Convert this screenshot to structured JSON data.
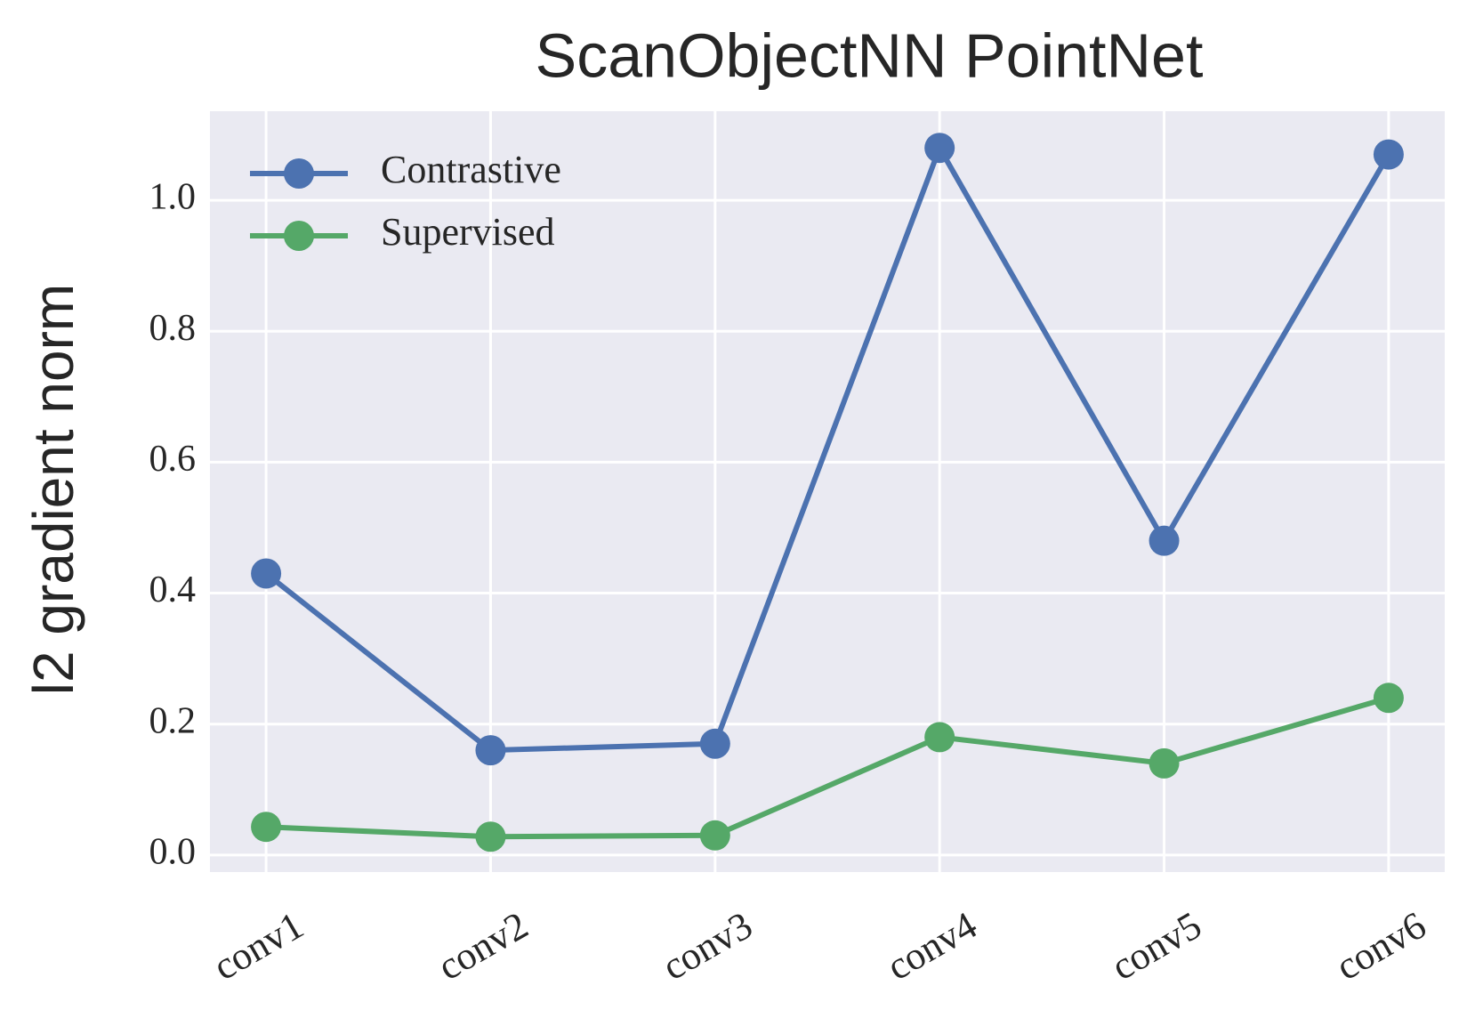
{
  "chart_data": {
    "type": "line",
    "title": "ScanObjectNN PointNet",
    "y_label": "l2 gradient norm",
    "categories": [
      "conv1",
      "conv2",
      "conv3",
      "conv4",
      "conv5",
      "conv6"
    ],
    "series": [
      {
        "name": "Contrastive",
        "color": "#4c72b0",
        "values": [
          0.43,
          0.16,
          0.17,
          1.08,
          0.48,
          1.07
        ]
      },
      {
        "name": "Supervised",
        "color": "#55a868",
        "values": [
          0.043,
          0.028,
          0.03,
          0.18,
          0.14,
          0.24
        ]
      }
    ],
    "ylim": [
      -0.026,
      1.136
    ],
    "yticks": [
      {
        "value": 0,
        "label": "0.0"
      },
      0.2,
      0.4,
      0.6,
      0.8,
      {
        "value": 1,
        "label": "1.0"
      }
    ],
    "grid": true,
    "legend": "upper left",
    "background": "#eaeaf2"
  }
}
